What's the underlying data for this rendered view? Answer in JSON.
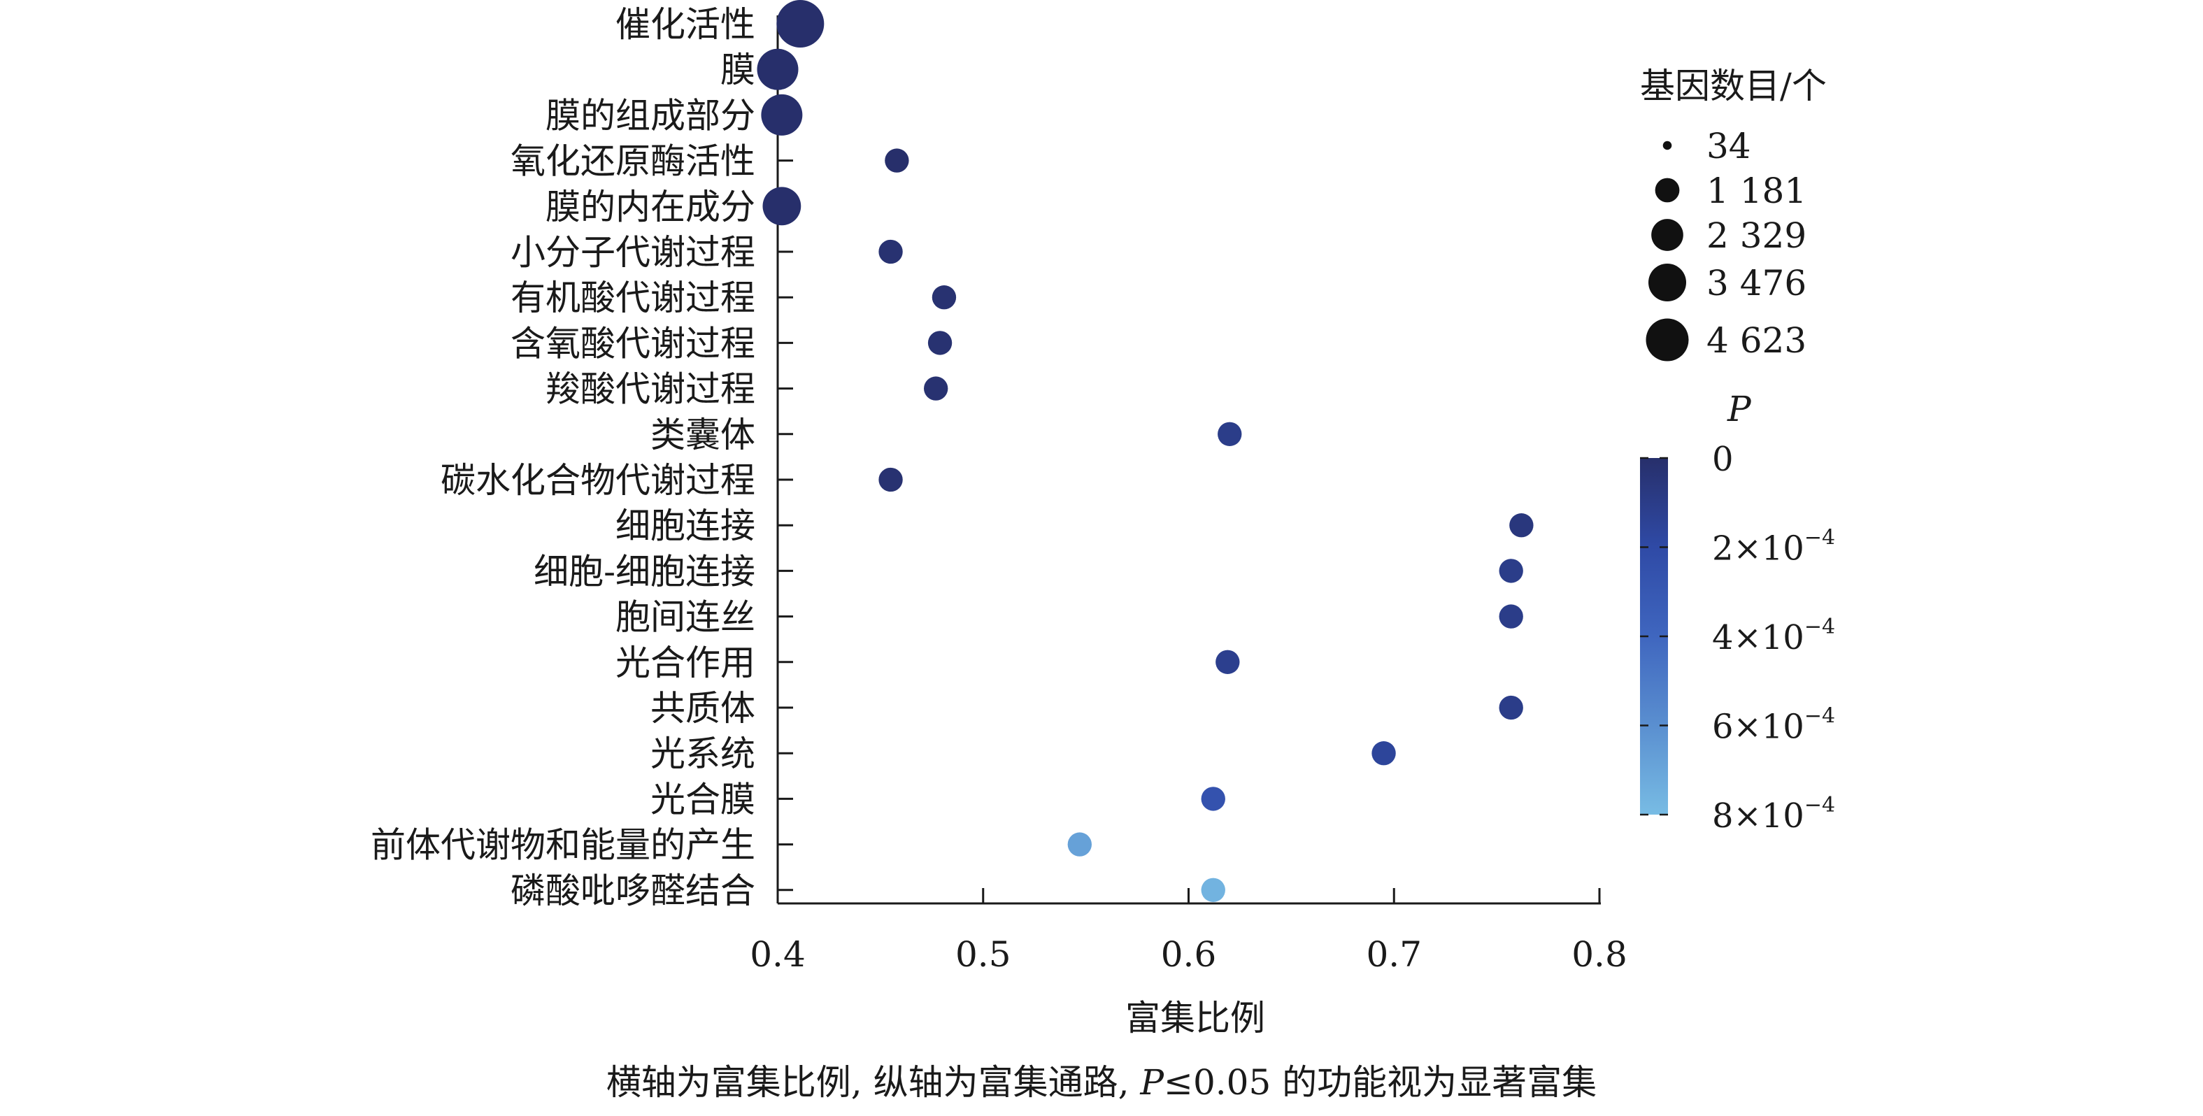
{
  "chart_data": {
    "type": "scatter",
    "xlabel": "富集比例",
    "xlim": [
      0.4,
      0.8
    ],
    "xticks": [
      "0.4",
      "0.5",
      "0.6",
      "0.7",
      "0.8"
    ],
    "categories": [
      "催化活性",
      "膜",
      "膜的组成部分",
      "氧化还原酶活性",
      "膜的内在成分",
      "小分子代谢过程",
      "有机酸代谢过程",
      "含氧酸代谢过程",
      "羧酸代谢过程",
      "类囊体",
      "碳水化合物代谢过程",
      "细胞连接",
      "细胞-细胞连接",
      "胞间连丝",
      "光合作用",
      "共质体",
      "光系统",
      "光合膜",
      "前体代谢物和能量的产生",
      "磷酸吡哆醛结合"
    ],
    "x": [
      0.411,
      0.4,
      0.402,
      0.458,
      0.402,
      0.455,
      0.481,
      0.479,
      0.477,
      0.62,
      0.455,
      0.762,
      0.757,
      0.757,
      0.619,
      0.757,
      0.695,
      0.612,
      0.547,
      0.612
    ],
    "gene_count": [
      4623,
      3476,
      3476,
      1181,
      3000,
      1181,
      1181,
      1181,
      1181,
      1181,
      1181,
      1181,
      1181,
      1181,
      1181,
      1181,
      1181,
      1181,
      1181,
      1181
    ],
    "p_value": [
      0,
      0,
      0,
      0,
      0,
      2e-05,
      2e-05,
      2e-05,
      2e-05,
      0.0001,
      2e-05,
      6e-05,
      0.0001,
      0.0001,
      0.00012,
      0.0001,
      0.00016,
      0.00026,
      0.00068,
      0.00076
    ],
    "size_legend": {
      "title": "基因数目/个",
      "values": [
        34,
        1181,
        2329,
        3476,
        4623
      ],
      "labels": [
        "34",
        "1 181",
        "2 329",
        "3 476",
        "4 623"
      ]
    },
    "color_legend": {
      "title": "P",
      "range": [
        0,
        0.0008
      ],
      "ticks": [
        0,
        0.0002,
        0.0004,
        0.0006,
        0.0008
      ],
      "tick_labels": [
        "0",
        "2×10",
        "4×10",
        "6×10",
        "8×10"
      ],
      "tick_exponents": [
        "",
        "−4",
        "−4",
        "−4",
        "−4"
      ],
      "colors": [
        "#272f6b",
        "#2f4aa6",
        "#3f66bf",
        "#5a8fd0",
        "#78bce4"
      ]
    },
    "grid": false,
    "legend_position": "right"
  },
  "caption": {
    "part1": "横轴为富集比例, 纵轴为富集通路, ",
    "p_symbol": "P",
    "part2": "≤0.05 的功能视为显著富集"
  }
}
